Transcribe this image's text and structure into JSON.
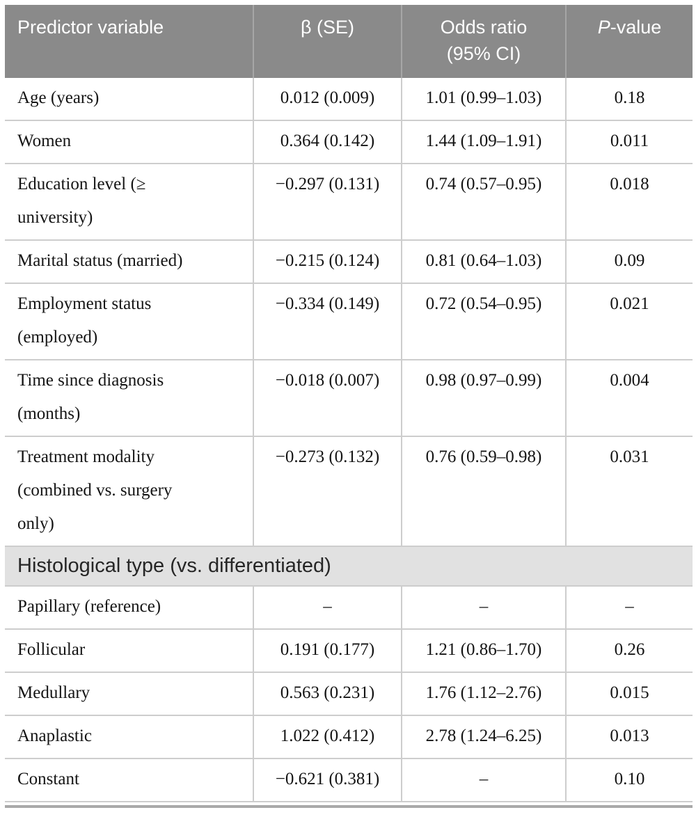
{
  "table": {
    "header": {
      "predictor": "Predictor variable",
      "beta_se": "β (SE)",
      "odds_ratio": "Odds ratio\n(95% CI)",
      "p_prefix": "P",
      "p_suffix": "-value"
    },
    "section_header": "Histological type (vs. differentiated)",
    "rows": [
      {
        "predictor": "Age (years)",
        "beta_se": "0.012 (0.009)",
        "odds_ci": "1.01 (0.99–1.03)",
        "p": "0.18"
      },
      {
        "predictor": "Women",
        "beta_se": "0.364 (0.142)",
        "odds_ci": "1.44 (1.09–1.91)",
        "p": "0.011"
      },
      {
        "predictor": "Education level (≥\nuniversity)",
        "beta_se": "−0.297 (0.131)",
        "odds_ci": "0.74 (0.57–0.95)",
        "p": "0.018"
      },
      {
        "predictor": "Marital status (married)",
        "beta_se": "−0.215 (0.124)",
        "odds_ci": "0.81 (0.64–1.03)",
        "p": "0.09"
      },
      {
        "predictor": "Employment status\n(employed)",
        "beta_se": "−0.334 (0.149)",
        "odds_ci": "0.72 (0.54–0.95)",
        "p": "0.021"
      },
      {
        "predictor": "Time since diagnosis\n(months)",
        "beta_se": "−0.018 (0.007)",
        "odds_ci": "0.98 (0.97–0.99)",
        "p": "0.004"
      },
      {
        "predictor": "Treatment modality\n(combined vs. surgery\nonly)",
        "beta_se": "−0.273 (0.132)",
        "odds_ci": "0.76 (0.59–0.98)",
        "p": "0.031"
      },
      {
        "predictor": "Papillary (reference)",
        "beta_se": "–",
        "odds_ci": "–",
        "p": "–"
      },
      {
        "predictor": "Follicular",
        "beta_se": "0.191 (0.177)",
        "odds_ci": "1.21 (0.86–1.70)",
        "p": "0.26"
      },
      {
        "predictor": "Medullary",
        "beta_se": "0.563 (0.231)",
        "odds_ci": "1.76 (1.12–2.76)",
        "p": "0.015"
      },
      {
        "predictor": "Anaplastic",
        "beta_se": "1.022 (0.412)",
        "odds_ci": "2.78 (1.24–6.25)",
        "p": "0.013"
      },
      {
        "predictor": "Constant",
        "beta_se": "−0.621 (0.381)",
        "odds_ci": "–",
        "p": "0.10"
      }
    ],
    "colors": {
      "header_bg": "#8a8a8a",
      "header_text": "#ffffff",
      "section_bg": "#e1e1e1",
      "row_border": "#cdcdcd",
      "bottom_rule": "#a9a9a9"
    }
  }
}
